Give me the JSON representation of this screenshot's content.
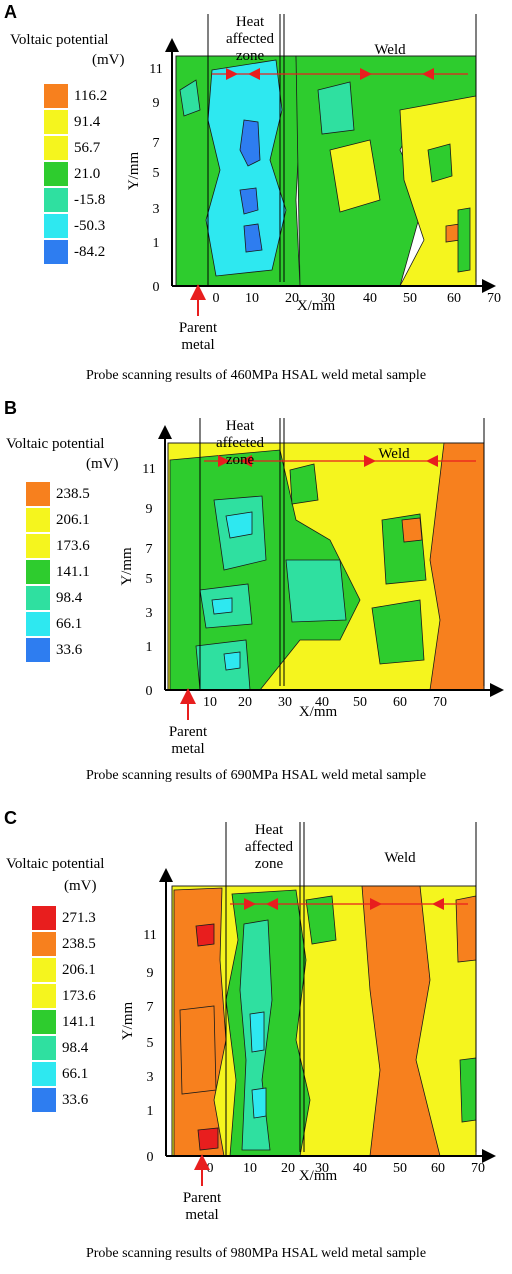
{
  "figure": {
    "panels": [
      {
        "letter": "A",
        "legend_title": "Voltaic potential",
        "legend_unit": "(mV)",
        "legend_levels": [
          "116.2",
          "91.4",
          "56.7",
          "21.0",
          "-15.8",
          "-50.3",
          "-84.2"
        ],
        "legend_colors": [
          "#f7801e",
          "#f5f51e",
          "#f5f51e",
          "#2ecc2e",
          "#2fe0a0",
          "#2ee8f0",
          "#2e7df0"
        ],
        "caption": "Probe scanning results of 460MPa HSAL weld metal sample",
        "ylabel": "Y/mm",
        "xlabel": "X/mm",
        "y_ticks": [
          "0",
          "1",
          "3",
          "5",
          "7",
          "9",
          "11"
        ],
        "x_ticks": [
          "0",
          "10",
          "20",
          "30",
          "40",
          "50",
          "60",
          "70"
        ],
        "zone_labels": {
          "haz": [
            "Heat",
            "affected",
            "zone"
          ],
          "weld": "Weld",
          "parent": [
            "Parent",
            "metal"
          ]
        }
      },
      {
        "letter": "B",
        "legend_title": "Voltaic potential",
        "legend_unit": "(mV)",
        "legend_levels": [
          "238.5",
          "206.1",
          "173.6",
          "141.1",
          "98.4",
          "66.1",
          "33.6"
        ],
        "legend_colors": [
          "#f7801e",
          "#f5f51e",
          "#f5f51e",
          "#2ecc2e",
          "#2fe0a0",
          "#2ee8f0",
          "#2e7df0"
        ],
        "caption": "Probe scanning results of 690MPa HSAL weld metal sample",
        "ylabel": "Y/mm",
        "xlabel": "X/mm",
        "y_ticks": [
          "0",
          "1",
          "3",
          "5",
          "7",
          "9",
          "11"
        ],
        "x_ticks": [
          "10",
          "20",
          "30",
          "40",
          "50",
          "60",
          "70"
        ],
        "zone_labels": {
          "haz": [
            "Heat",
            "affected",
            "zone"
          ],
          "weld": "Weld",
          "parent": [
            "Parent",
            "metal"
          ]
        }
      },
      {
        "letter": "C",
        "legend_title": "Voltaic potential",
        "legend_unit": "(mV)",
        "legend_levels": [
          "271.3",
          "238.5",
          "206.1",
          "173.6",
          "141.1",
          "98.4",
          "66.1",
          "33.6"
        ],
        "legend_colors": [
          "#e81e1e",
          "#f7801e",
          "#f5f51e",
          "#f5f51e",
          "#2ecc2e",
          "#2fe0a0",
          "#2ee8f0",
          "#2e7df0"
        ],
        "caption": "Probe scanning results of 980MPa HSAL weld metal sample",
        "ylabel": "Y/mm",
        "xlabel": "X/mm",
        "y_ticks": [
          "0",
          "1",
          "3",
          "5",
          "7",
          "9",
          "11"
        ],
        "x_ticks": [
          "0",
          "10",
          "20",
          "30",
          "40",
          "50",
          "60",
          "70"
        ],
        "zone_labels": {
          "haz": [
            "Heat",
            "affected",
            "zone"
          ],
          "weld": "Weld",
          "parent": [
            "Parent",
            "metal"
          ]
        }
      }
    ]
  },
  "chart_data": [
    {
      "type": "heatmap",
      "x_range": [
        0,
        75
      ],
      "y_range": [
        0,
        11
      ],
      "xlabel": "X/mm",
      "ylabel": "Y/mm",
      "legend": [
        "116.2",
        "91.4",
        "56.7",
        "21.0",
        "-15.8",
        "-50.3",
        "-84.2"
      ]
    },
    {
      "type": "heatmap",
      "x_range": [
        5,
        75
      ],
      "y_range": [
        0,
        11
      ],
      "xlabel": "X/mm",
      "ylabel": "Y/mm",
      "legend": [
        "238.5",
        "206.1",
        "173.6",
        "141.1",
        "98.4",
        "66.1",
        "33.6"
      ]
    },
    {
      "type": "heatmap",
      "x_range": [
        0,
        75
      ],
      "y_range": [
        0,
        11
      ],
      "xlabel": "X/mm",
      "ylabel": "Y/mm",
      "legend": [
        "271.3",
        "238.5",
        "206.1",
        "173.6",
        "141.1",
        "98.4",
        "66.1",
        "33.6"
      ]
    }
  ]
}
